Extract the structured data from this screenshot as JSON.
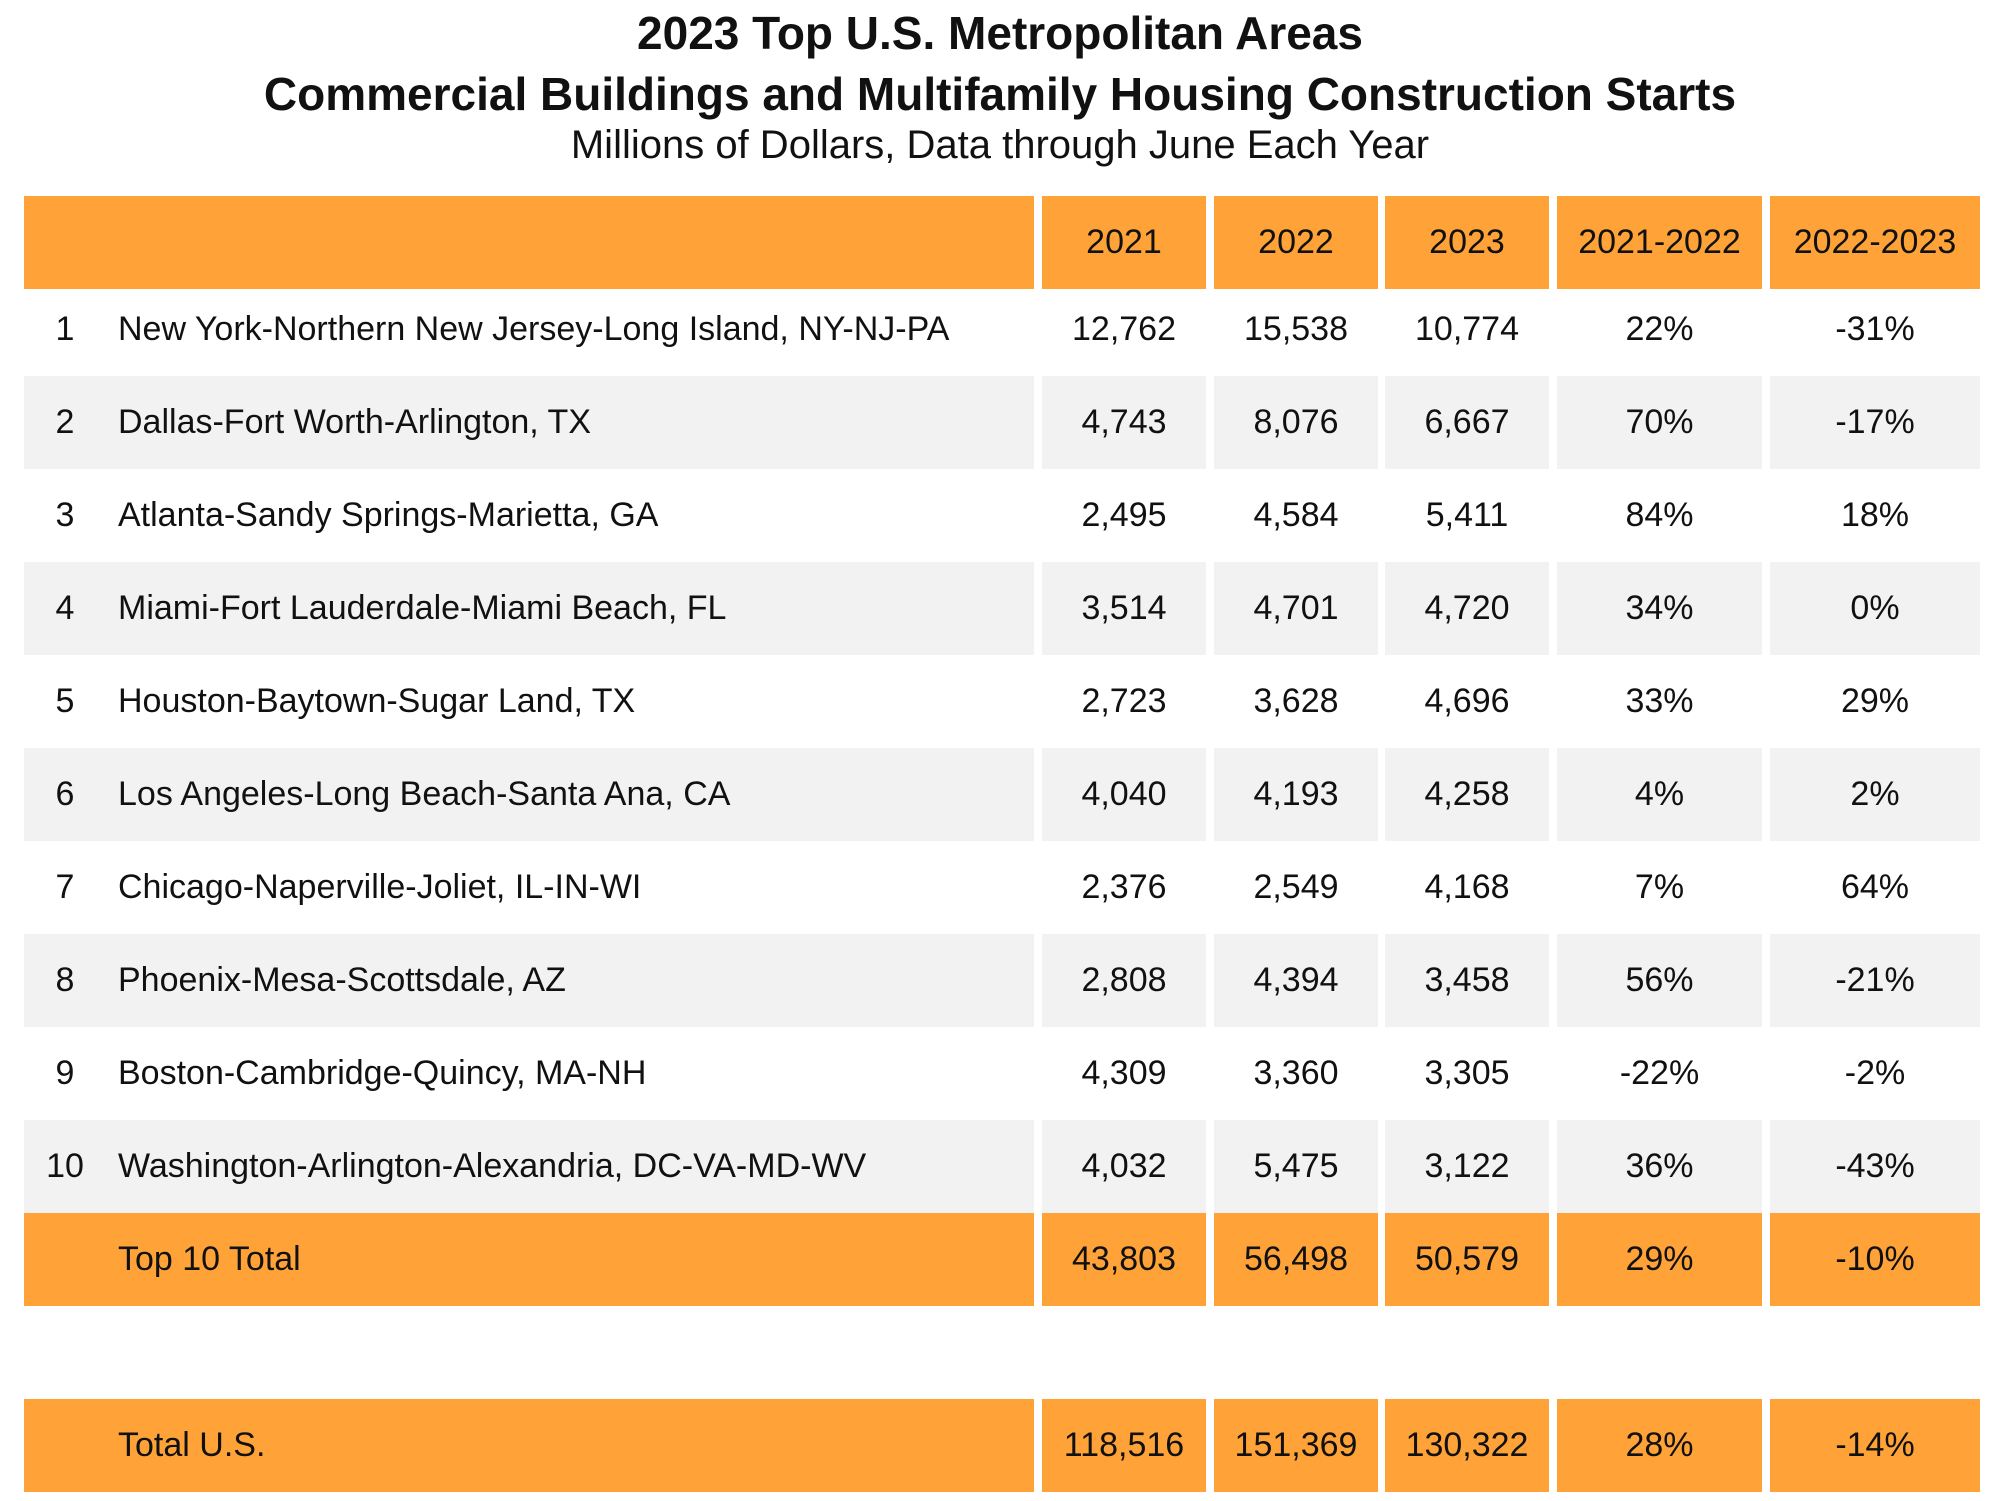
{
  "title_line1": "2023 Top U.S. Metropolitan Areas",
  "title_line2": "Commercial Buildings and Multifamily Housing Construction Starts",
  "subtitle": "Millions of Dollars, Data through June Each Year",
  "colors": {
    "header_fill": "#ffa339",
    "alt_row_fill": "#f1f2f1",
    "text": "#111111"
  },
  "chart_data": {
    "type": "table",
    "columns": [
      "",
      "",
      "2021",
      "2022",
      "2023",
      "2021-2022",
      "2022-2023"
    ],
    "rows": [
      [
        "1",
        "New York-Northern New Jersey-Long Island, NY-NJ-PA",
        "12,762",
        "15,538",
        "10,774",
        "22%",
        "-31%"
      ],
      [
        "2",
        "Dallas-Fort Worth-Arlington, TX",
        "4,743",
        "8,076",
        "6,667",
        "70%",
        "-17%"
      ],
      [
        "3",
        "Atlanta-Sandy Springs-Marietta, GA",
        "2,495",
        "4,584",
        "5,411",
        "84%",
        "18%"
      ],
      [
        "4",
        "Miami-Fort Lauderdale-Miami Beach, FL",
        "3,514",
        "4,701",
        "4,720",
        "34%",
        "0%"
      ],
      [
        "5",
        "Houston-Baytown-Sugar Land, TX",
        "2,723",
        "3,628",
        "4,696",
        "33%",
        "29%"
      ],
      [
        "6",
        "Los Angeles-Long Beach-Santa Ana, CA",
        "4,040",
        "4,193",
        "4,258",
        "4%",
        "2%"
      ],
      [
        "7",
        "Chicago-Naperville-Joliet, IL-IN-WI",
        "2,376",
        "2,549",
        "4,168",
        "7%",
        "64%"
      ],
      [
        "8",
        "Phoenix-Mesa-Scottsdale, AZ",
        "2,808",
        "4,394",
        "3,458",
        "56%",
        "-21%"
      ],
      [
        "9",
        "Boston-Cambridge-Quincy, MA-NH",
        "4,309",
        "3,360",
        "3,305",
        "-22%",
        "-2%"
      ],
      [
        "10",
        "Washington-Arlington-Alexandria, DC-VA-MD-WV",
        "4,032",
        "5,475",
        "3,122",
        "36%",
        "-43%"
      ]
    ],
    "totals": [
      [
        "",
        "Top 10 Total",
        "43,803",
        "56,498",
        "50,579",
        "29%",
        "-10%"
      ],
      [
        "",
        "Total U.S.",
        "118,516",
        "151,369",
        "130,322",
        "28%",
        "-14%"
      ]
    ]
  }
}
